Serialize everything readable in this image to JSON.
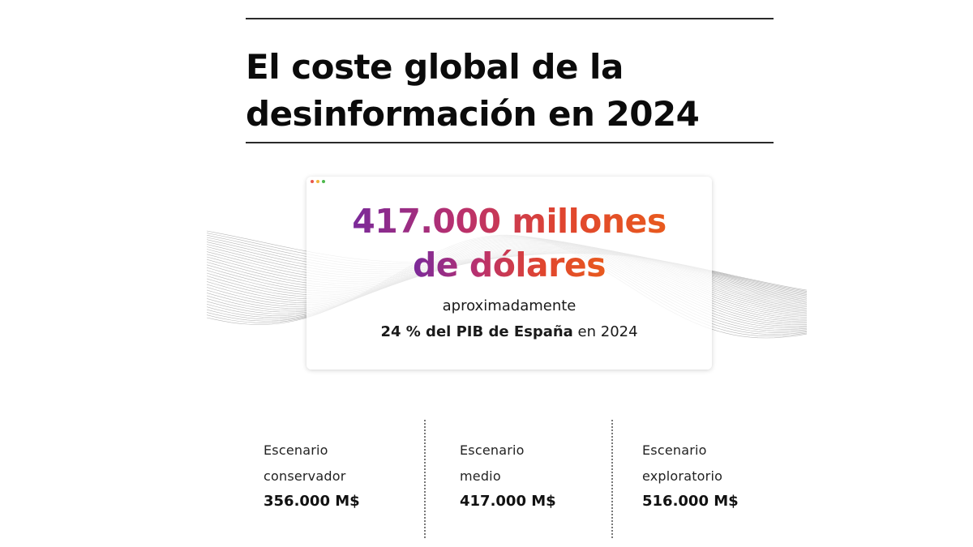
{
  "title": {
    "line1": "El coste global de la",
    "line2": "desinformación en 2024"
  },
  "highlight": {
    "amount_line1": "417.000 millones",
    "amount_line2": "de dólares",
    "approx": "aproximadamente",
    "gdp_bold": "24 % del PIB de España",
    "gdp_rest": " en 2024"
  },
  "window_dots": {
    "colors": [
      "#e8574b",
      "#f0b43a",
      "#4cb84c"
    ]
  },
  "gradient_colors": [
    "#7a2a9a",
    "#b8306f",
    "#e0452f",
    "#e85a1e"
  ],
  "scenarios": [
    {
      "line1": "Escenario",
      "line2": "conservador",
      "value": "356.000 M$"
    },
    {
      "line1": "Escenario",
      "line2": "medio",
      "value": "417.000 M$"
    },
    {
      "line1": "Escenario",
      "line2": "exploratorio",
      "value": "516.000 M$"
    }
  ]
}
